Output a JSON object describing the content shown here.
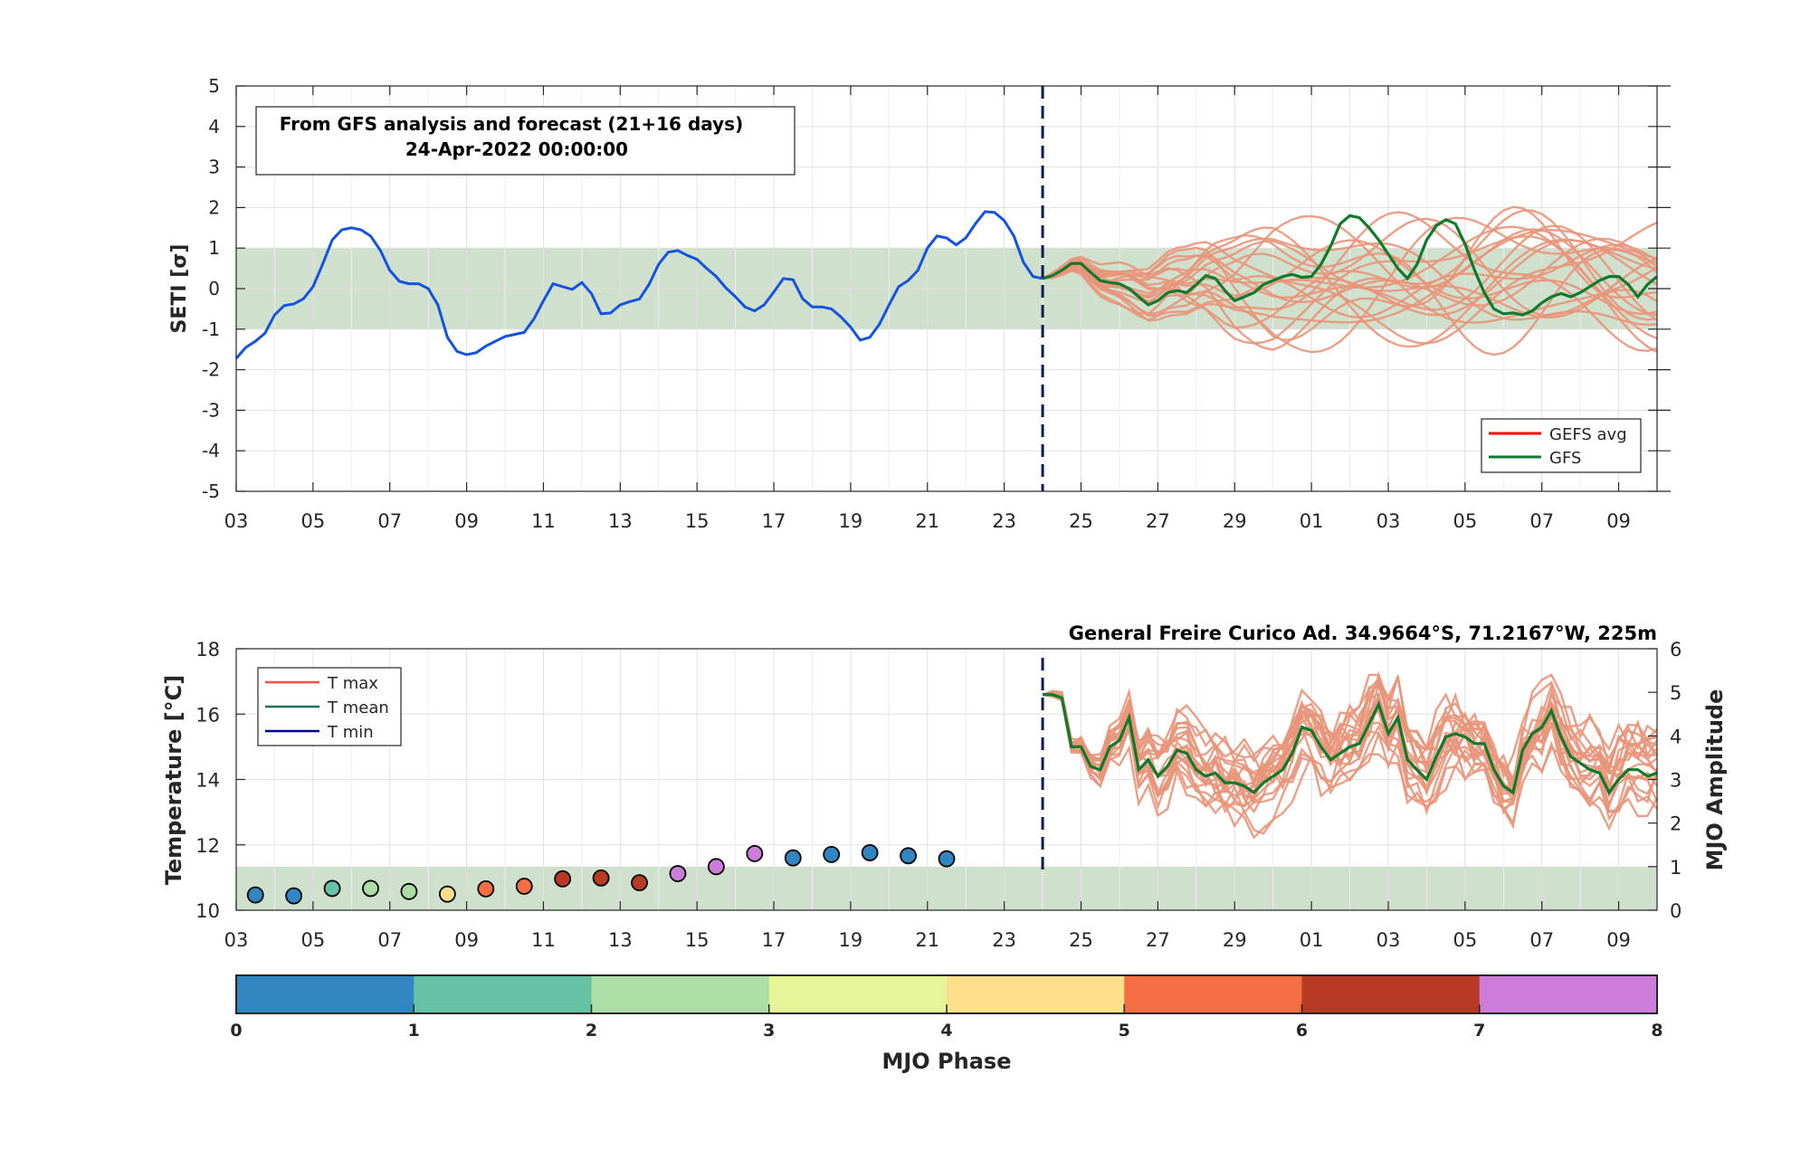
{
  "chart_data": [
    {
      "type": "line",
      "ylabel": "SETI [σ]",
      "ylim": [
        -5,
        5
      ],
      "yticks": [
        "5",
        "4",
        "3",
        "2",
        "1",
        "0",
        "-1",
        "-2",
        "-3",
        "-4",
        "-5"
      ],
      "xtick_labels": [
        "03",
        "05",
        "07",
        "09",
        "11",
        "13",
        "15",
        "17",
        "19",
        "21",
        "23",
        "25",
        "27",
        "29",
        "01",
        "03",
        "05",
        "07",
        "09"
      ],
      "x_range_days": [
        3,
        40
      ],
      "forecast_start_day": 24,
      "normal_band": [
        -1,
        1
      ],
      "annotation": {
        "line1": "From GFS analysis and forecast (21+16 days)",
        "line2": "24-Apr-2022 00:00:00"
      },
      "legend": {
        "position": "bottom-right",
        "entries": [
          "GEFS avg",
          "GFS"
        ]
      },
      "colors": {
        "analysis": "#1452e0",
        "gfs": "#0e7a2c",
        "ensemble": "#e8957a",
        "gefs_avg": "#ff0000",
        "band": "#cfe0cc",
        "forecast_line": "#0b1a4d"
      },
      "series": [
        {
          "name": "Analysis",
          "x": [
            3,
            3.25,
            3.5,
            3.75,
            4,
            4.25,
            4.5,
            4.75,
            5,
            5.25,
            5.5,
            5.75,
            6,
            6.25,
            6.5,
            6.75,
            7,
            7.25,
            7.5,
            7.75,
            8,
            8.25,
            8.5,
            8.75,
            9,
            9.25,
            9.5,
            9.75,
            10,
            10.25,
            10.5,
            10.75,
            11,
            11.25,
            11.5,
            11.75,
            12,
            12.25,
            12.5,
            12.75,
            13,
            13.25,
            13.5,
            13.75,
            14,
            14.25,
            14.5,
            14.75,
            15,
            15.25,
            15.5,
            15.75,
            16,
            16.25,
            16.5,
            16.75,
            17,
            17.25,
            17.5,
            17.75,
            18,
            18.25,
            18.5,
            18.75,
            19,
            19.25,
            19.5,
            19.75,
            20,
            20.25,
            20.5,
            20.75,
            21,
            21.25,
            21.5,
            21.75,
            22,
            22.25,
            22.5,
            22.75,
            23,
            23.25,
            23.5,
            23.75,
            24
          ],
          "values": [
            -1.72,
            -1.45,
            -1.3,
            -1.1,
            -0.65,
            -0.42,
            -0.38,
            -0.25,
            0.05,
            0.6,
            1.2,
            1.45,
            1.5,
            1.45,
            1.3,
            0.95,
            0.45,
            0.18,
            0.12,
            0.12,
            0.0,
            -0.4,
            -1.2,
            -1.55,
            -1.63,
            -1.58,
            -1.42,
            -1.3,
            -1.18,
            -1.13,
            -1.08,
            -0.75,
            -0.3,
            0.12,
            0.05,
            -0.02,
            0.15,
            -0.12,
            -0.62,
            -0.6,
            -0.4,
            -0.32,
            -0.26,
            0.1,
            0.6,
            0.9,
            0.94,
            0.82,
            0.72,
            0.5,
            0.3,
            0.02,
            -0.2,
            -0.45,
            -0.55,
            -0.4,
            -0.08,
            0.25,
            0.22,
            -0.25,
            -0.45,
            -0.45,
            -0.5,
            -0.7,
            -0.95,
            -1.27,
            -1.2,
            -0.88,
            -0.4,
            0.05,
            0.2,
            0.45,
            1.0,
            1.3,
            1.25,
            1.08,
            1.25,
            1.6,
            1.9,
            1.88,
            1.68,
            1.3,
            0.65,
            0.3,
            0.25
          ]
        },
        {
          "name": "GFS",
          "x": [
            24,
            24.25,
            24.5,
            24.75,
            25,
            25.25,
            25.5,
            25.75,
            26,
            26.25,
            26.5,
            26.75,
            27,
            27.25,
            27.5,
            27.75,
            28,
            28.25,
            28.5,
            28.75,
            29,
            29.25,
            29.5,
            29.75,
            30,
            30.25,
            30.5,
            30.75,
            31,
            31.25,
            31.5,
            31.75,
            32,
            32.25,
            32.5,
            32.75,
            33,
            33.25,
            33.5,
            33.75,
            34,
            34.25,
            34.5,
            34.75,
            35,
            35.25,
            35.5,
            35.75,
            36,
            36.25,
            36.5,
            36.75,
            37,
            37.25,
            37.5,
            37.75,
            38,
            38.25,
            38.5,
            38.75,
            39,
            39.25,
            39.5,
            39.75,
            40
          ],
          "values": [
            0.25,
            0.32,
            0.45,
            0.62,
            0.62,
            0.4,
            0.2,
            0.15,
            0.12,
            0.0,
            -0.2,
            -0.4,
            -0.3,
            -0.1,
            -0.05,
            -0.1,
            0.1,
            0.32,
            0.25,
            -0.05,
            -0.3,
            -0.2,
            -0.1,
            0.1,
            0.2,
            0.3,
            0.35,
            0.28,
            0.3,
            0.6,
            1.05,
            1.6,
            1.8,
            1.75,
            1.5,
            1.2,
            0.85,
            0.5,
            0.25,
            0.6,
            1.2,
            1.55,
            1.7,
            1.6,
            1.1,
            0.45,
            -0.1,
            -0.5,
            -0.62,
            -0.6,
            -0.65,
            -0.55,
            -0.35,
            -0.2,
            -0.12,
            -0.2,
            -0.1,
            0.05,
            0.2,
            0.3,
            0.3,
            0.1,
            -0.2,
            0.1,
            0.3
          ]
        }
      ],
      "ensemble_members": 20,
      "ensemble_spread_approx": [
        -1.7,
        2.7
      ]
    },
    {
      "type": "line",
      "title": "General Freire Curico Ad. 34.9664°S, 71.2167°W, 225m",
      "ylabel": "Temperature [°C]",
      "y2label": "MJO Amplitude",
      "ylim": [
        10,
        18
      ],
      "y2lim": [
        0,
        6
      ],
      "yticks": [
        "18",
        "16",
        "14",
        "12",
        "10"
      ],
      "y2ticks": [
        "6",
        "5",
        "4",
        "3",
        "2",
        "1",
        "0"
      ],
      "xtick_labels": [
        "03",
        "05",
        "07",
        "09",
        "11",
        "13",
        "15",
        "17",
        "19",
        "21",
        "23",
        "25",
        "27",
        "29",
        "01",
        "03",
        "05",
        "07",
        "09"
      ],
      "mjo_band_amplitude": [
        0,
        1
      ],
      "legend": {
        "position": "top-left",
        "entries": [
          "T max",
          "T mean",
          "T min"
        ]
      },
      "colors": {
        "tmax": "#ff4d4d",
        "tmean": "#1f6f5c",
        "tmin": "#00008b",
        "gfs": "#0e7a2c",
        "ensemble": "#e8957a",
        "band": "#cfe0cc"
      },
      "series": [
        {
          "name": "GFS",
          "x": [
            24,
            24.25,
            24.5,
            24.75,
            25,
            25.25,
            25.5,
            25.75,
            26,
            26.25,
            26.5,
            26.75,
            27,
            27.25,
            27.5,
            27.75,
            28,
            28.25,
            28.5,
            28.75,
            29,
            29.25,
            29.5,
            29.75,
            30,
            30.25,
            30.5,
            30.75,
            31,
            31.25,
            31.5,
            31.75,
            32,
            32.25,
            32.5,
            32.75,
            33,
            33.25,
            33.5,
            33.75,
            34,
            34.25,
            34.5,
            34.75,
            35,
            35.25,
            35.5,
            35.75,
            36,
            36.25,
            36.5,
            36.75,
            37,
            37.25,
            37.5,
            37.75,
            38,
            38.25,
            38.5,
            38.75,
            39,
            39.25,
            39.5,
            39.75,
            40
          ],
          "values": [
            16.6,
            16.6,
            16.5,
            15.0,
            15.0,
            14.4,
            14.3,
            15.0,
            15.2,
            15.9,
            14.3,
            14.6,
            14.1,
            14.4,
            14.9,
            14.8,
            14.3,
            14.1,
            14.2,
            13.9,
            13.9,
            13.8,
            13.6,
            13.9,
            14.1,
            14.3,
            14.8,
            15.6,
            15.5,
            15.0,
            14.6,
            14.8,
            15.0,
            15.1,
            15.7,
            16.3,
            15.4,
            15.9,
            14.6,
            14.3,
            14.0,
            14.7,
            15.3,
            15.4,
            15.3,
            15.1,
            15.1,
            14.3,
            13.8,
            13.6,
            14.9,
            15.4,
            15.6,
            16.1,
            15.3,
            14.7,
            14.5,
            14.3,
            14.2,
            13.6,
            14.0,
            14.3,
            14.3,
            14.1,
            14.2
          ]
        }
      ],
      "mjo_points": {
        "day": [
          3.5,
          4.5,
          5.5,
          6.5,
          7.5,
          8.5,
          9.5,
          10.5,
          11.5,
          12.5,
          13.5,
          14.5,
          15.5,
          16.5,
          17.5,
          18.5,
          19.5,
          20.5,
          21.5
        ],
        "amplitude": [
          0.35,
          0.33,
          0.5,
          0.5,
          0.43,
          0.37,
          0.49,
          0.55,
          0.72,
          0.74,
          0.63,
          0.84,
          1.0,
          1.3,
          1.2,
          1.28,
          1.32,
          1.25,
          1.18
        ],
        "phase": [
          1,
          1,
          2,
          3,
          3,
          5,
          6,
          6,
          7,
          7,
          7,
          8,
          8,
          8,
          1,
          1,
          1,
          1,
          1
        ]
      },
      "ensemble_members": 20
    },
    {
      "type": "colorbar",
      "xlabel": "MJO Phase",
      "tick_labels": [
        "0",
        "1",
        "2",
        "3",
        "4",
        "5",
        "6",
        "7",
        "8"
      ],
      "phase_colors": [
        "#2f86c0",
        "#66c2a5",
        "#abdda4",
        "#e6f598",
        "#fee08b",
        "#f46d43",
        "#b83a22",
        "#cc7ddc"
      ]
    }
  ]
}
